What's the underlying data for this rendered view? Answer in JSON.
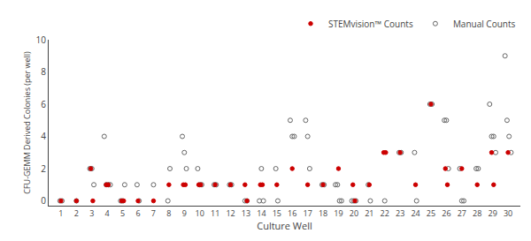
{
  "chart_data": {
    "type": "scatter",
    "xlabel": "Culture Well",
    "ylabel": "CFU-GEMM Derived Colonies (per well)",
    "xlim": [
      0.2,
      30.8
    ],
    "xticks": [
      1,
      2,
      3,
      4,
      5,
      6,
      7,
      8,
      9,
      10,
      11,
      12,
      13,
      14,
      15,
      16,
      17,
      18,
      19,
      20,
      21,
      22,
      23,
      24,
      25,
      26,
      27,
      28,
      29,
      30
    ],
    "ylim": [
      -0.3,
      10
    ],
    "yticks": [
      0,
      2,
      4,
      6,
      8,
      10
    ],
    "grid": false,
    "legend": "upper right",
    "series": [
      {
        "name": "STEMvision™ Counts",
        "color": "#cc0000",
        "marker": "circle",
        "x": [
          1,
          2,
          3,
          3,
          4,
          4,
          5,
          5,
          6,
          7,
          8,
          9,
          9,
          10,
          10,
          11,
          12,
          13,
          13,
          14,
          14,
          15,
          16,
          17,
          18,
          19,
          20,
          20,
          21,
          22,
          22,
          23,
          24,
          25,
          26,
          26,
          27,
          28,
          29,
          29,
          30
        ],
        "values": [
          0,
          0,
          2,
          0,
          1,
          1,
          0,
          0,
          0,
          0,
          1,
          1,
          1,
          1,
          1,
          1,
          1,
          1,
          0,
          1,
          1,
          1,
          2,
          1,
          1,
          2,
          1,
          0,
          1,
          3,
          3,
          3,
          1,
          6,
          2,
          1,
          2,
          1,
          3,
          1,
          3
        ]
      },
      {
        "name": "Manual Counts",
        "color": "#666666",
        "marker": "circle-open",
        "x": [
          1,
          1,
          2,
          3,
          3,
          3,
          4,
          4,
          4,
          4,
          5,
          5,
          5,
          6,
          6,
          7,
          8,
          8,
          9,
          9,
          9,
          10,
          10,
          10,
          11,
          11,
          12,
          12,
          13,
          13,
          14,
          14,
          14,
          15,
          15,
          16,
          16,
          16,
          17,
          17,
          17,
          18,
          18,
          19,
          19,
          19,
          19,
          20,
          20,
          20,
          21,
          21,
          22,
          23,
          23,
          24,
          24,
          25,
          25,
          26,
          26,
          26,
          27,
          27,
          27,
          28,
          28,
          29,
          29,
          29,
          29,
          30,
          30,
          30,
          30
        ],
        "values": [
          0,
          0,
          0,
          2,
          2,
          1,
          4,
          1,
          1,
          1,
          0,
          0,
          1,
          1,
          0,
          1,
          0,
          2,
          4,
          3,
          2,
          2,
          1,
          1,
          1,
          1,
          1,
          1,
          0,
          0,
          0,
          2,
          0,
          2,
          0,
          5,
          4,
          4,
          5,
          4,
          2,
          1,
          1,
          1,
          1,
          0,
          0,
          0,
          0,
          0,
          1,
          0,
          0,
          3,
          3,
          3,
          0,
          6,
          6,
          5,
          5,
          2,
          2,
          0,
          0,
          2,
          2,
          6,
          4,
          4,
          3,
          9,
          5,
          4,
          3
        ]
      }
    ]
  }
}
